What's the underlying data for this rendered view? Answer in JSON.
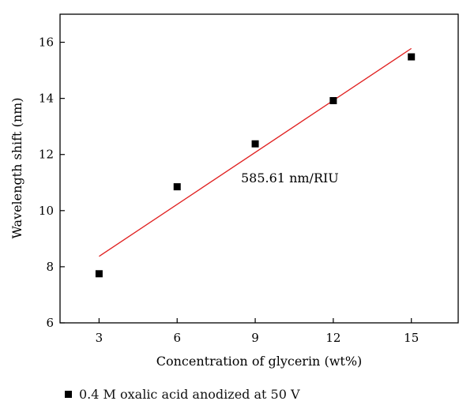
{
  "chart_data": {
    "type": "scatter",
    "xlabel": "Concentration of glycerin (wt%)",
    "ylabel": "Wavelength shift (nm)",
    "xlim": [
      1.5,
      16.8
    ],
    "ylim": [
      6,
      17
    ],
    "xticks": [
      3,
      6,
      9,
      12,
      15
    ],
    "yticks": [
      6,
      8,
      10,
      12,
      14,
      16
    ],
    "grid": false,
    "legend_position": "bottom-left, below plot",
    "series": [
      {
        "name": "0.4 M oxalic acid anodized at 50 V",
        "x": [
          3,
          6,
          9,
          12,
          15
        ],
        "y": [
          7.75,
          10.85,
          12.38,
          13.92,
          15.48
        ],
        "marker": "square",
        "color": "#000000"
      }
    ],
    "fit_line": {
      "x": [
        3,
        15
      ],
      "y": [
        8.37,
        15.78
      ],
      "color": "#e02020"
    },
    "annotation": "585.61 nm/RIU"
  }
}
